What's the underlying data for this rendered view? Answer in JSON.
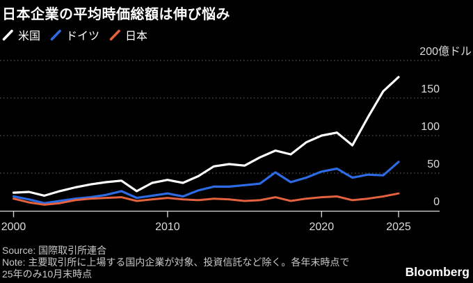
{
  "title": "日本企業の平均時価総額は伸び悩み",
  "footer": {
    "source": "Source: 国際取引所連合",
    "note_line1": "Note: 主要取引所に上場する国内企業が対象、投資信託など除く。各年末時点で",
    "note_line2": "25年のみ10月末時点",
    "brand": "Bloomberg"
  },
  "colors": {
    "background": "#000000",
    "us": "#ffffff",
    "germany": "#2c6be4",
    "japan": "#e4623e",
    "gridline": "#666666",
    "axis_text": "#dcdcdc"
  },
  "chart_data": {
    "type": "line",
    "title": "日本企業の平均時価総額は伸び悩み",
    "unit": "億ドル",
    "grid": "horizontal-dotted",
    "legend_position": "top-left",
    "ylim": [
      0,
      200
    ],
    "x": [
      2000,
      2001,
      2002,
      2003,
      2004,
      2005,
      2006,
      2007,
      2008,
      2009,
      2010,
      2011,
      2012,
      2013,
      2014,
      2015,
      2016,
      2017,
      2018,
      2019,
      2020,
      2021,
      2022,
      2023,
      2024,
      2025
    ],
    "series": [
      {
        "name": "米国",
        "color": "#ffffff",
        "values": [
          24,
          25,
          20,
          26,
          31,
          35,
          38,
          40,
          26,
          37,
          41,
          37,
          46,
          59,
          62,
          60,
          71,
          80,
          75,
          91,
          100,
          104,
          87,
          124,
          159,
          178
        ]
      },
      {
        "name": "ドイツ",
        "color": "#2c6be4",
        "values": [
          19,
          15,
          10,
          13,
          16,
          18,
          21,
          26,
          17,
          20,
          23,
          19,
          27,
          32,
          32,
          34,
          36,
          51,
          38,
          44,
          52,
          56,
          44,
          48,
          47,
          65
        ]
      },
      {
        "name": "日本",
        "color": "#e4623e",
        "values": [
          16,
          11,
          8,
          10,
          14,
          16,
          17,
          18,
          13,
          15,
          17,
          15,
          14,
          16,
          15,
          13,
          14,
          18,
          13,
          16,
          18,
          19,
          14,
          16,
          19,
          23
        ]
      }
    ],
    "yticks": [
      {
        "value": 0,
        "label": "0"
      },
      {
        "value": 50,
        "label": "50"
      },
      {
        "value": 100,
        "label": "100"
      },
      {
        "value": 150,
        "label": "150"
      },
      {
        "value": 200,
        "label": "200億ドル"
      }
    ],
    "xticks": [
      {
        "value": 2000,
        "label": "2000"
      },
      {
        "value": 2010,
        "label": "2010"
      },
      {
        "value": 2020,
        "label": "2020"
      },
      {
        "value": 2025,
        "label": "2025"
      }
    ]
  }
}
